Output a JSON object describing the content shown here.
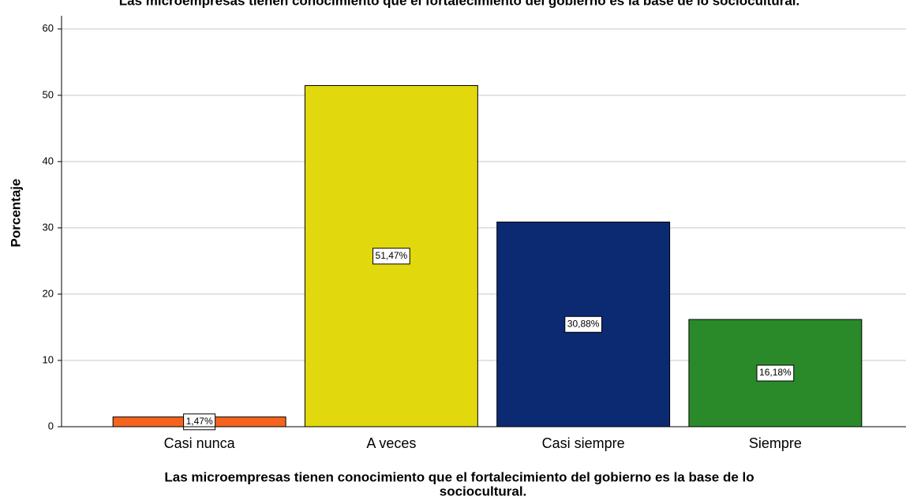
{
  "chart_data": {
    "type": "bar",
    "title": "Las microempresas tienen conocimiento que el fortalecimiento del gobierno es la base de lo sociocultural.",
    "x_label": [
      "Las microempresas tienen conocimiento que el fortalecimiento del gobierno es la base de lo",
      "sociocultural."
    ],
    "y_label": "Porcentaje",
    "categories": [
      "Casi nunca",
      "A veces",
      "Casi siempre",
      "Siempre"
    ],
    "values": [
      1.47,
      51.47,
      30.88,
      16.18
    ],
    "value_labels": [
      "1,47%",
      "51,47%",
      "30,88%",
      "16,18%"
    ],
    "colors": [
      "#f5641e",
      "#e1d80e",
      "#0b2a72",
      "#2a8a2a"
    ],
    "ylim": [
      0,
      62
    ],
    "yticks": [
      0,
      10,
      20,
      30,
      40,
      50,
      60
    ],
    "grid": true
  }
}
